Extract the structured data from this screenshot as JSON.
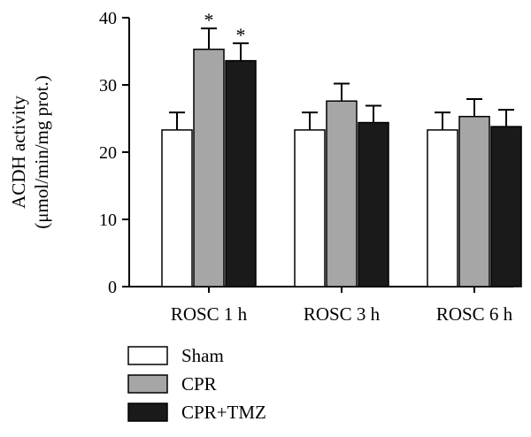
{
  "chart_data": {
    "type": "bar",
    "categories": [
      "ROSC 1 h",
      "ROSC 3 h",
      "ROSC 6 h"
    ],
    "ylabel_line1": "ACDH activity",
    "ylabel_line2": "(μmol/min/mg prot.)",
    "ylim": [
      0,
      40
    ],
    "yticks": [
      0,
      10,
      20,
      30,
      40
    ],
    "grid": false,
    "legend_position": "bottom-left",
    "series": [
      {
        "name": "Sham",
        "color": "#ffffff",
        "values": [
          23.3,
          23.3,
          23.3
        ],
        "errors": [
          2.6,
          2.6,
          2.6
        ],
        "significant": [
          false,
          false,
          false
        ]
      },
      {
        "name": "CPR",
        "color": "#a6a6a6",
        "values": [
          35.3,
          27.6,
          25.3
        ],
        "errors": [
          3.1,
          2.6,
          2.6
        ],
        "significant": [
          true,
          false,
          false
        ]
      },
      {
        "name": "CPR+TMZ",
        "color": "#1a1a1a",
        "values": [
          33.6,
          24.4,
          23.8
        ],
        "errors": [
          2.6,
          2.5,
          2.5
        ],
        "significant": [
          true,
          false,
          false
        ]
      }
    ],
    "significance_marker": "*"
  }
}
